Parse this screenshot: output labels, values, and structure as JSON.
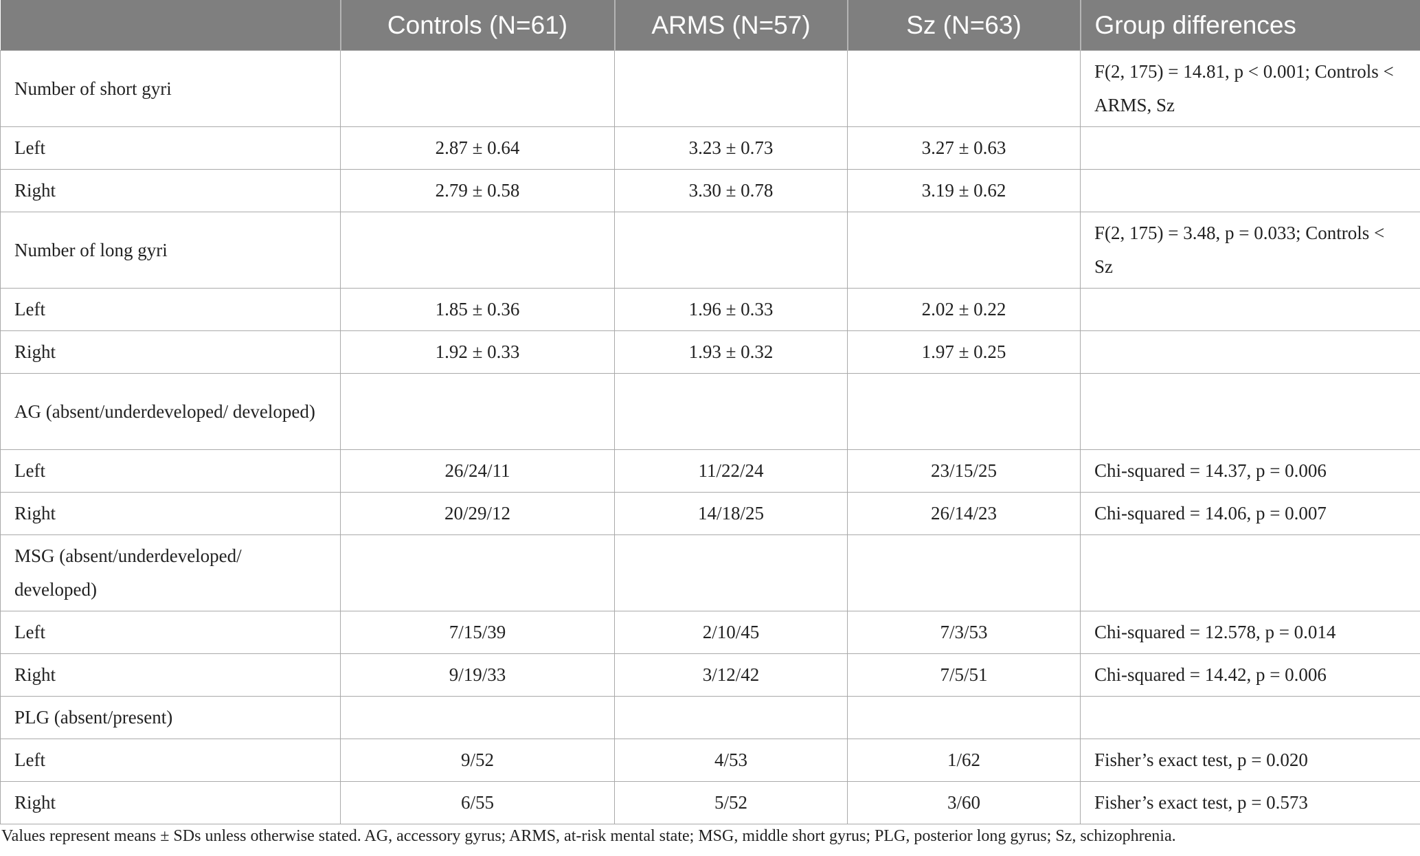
{
  "table": {
    "headers": [
      "",
      "Controls (N=61)",
      "ARMS (N=57)",
      "Sz (N=63)",
      "Group differences"
    ],
    "rows": [
      {
        "label": "Number of short gyri",
        "c1": "",
        "c2": "",
        "c3": "",
        "g": "F(2, 175) = 14.81, p < 0.001; Controls < ARMS, Sz",
        "tall": true
      },
      {
        "label": "Left",
        "c1": "2.87 ± 0.64",
        "c2": "3.23 ± 0.73",
        "c3": "3.27 ± 0.63",
        "g": "",
        "tall": false
      },
      {
        "label": "Right",
        "c1": "2.79 ± 0.58",
        "c2": "3.30 ± 0.78",
        "c3": "3.19 ± 0.62",
        "g": "",
        "tall": false
      },
      {
        "label": "Number of long gyri",
        "c1": "",
        "c2": "",
        "c3": "",
        "g": "F(2, 175) = 3.48, p = 0.033; Controls < Sz",
        "tall": true
      },
      {
        "label": "Left",
        "c1": "1.85 ± 0.36",
        "c2": "1.96 ± 0.33",
        "c3": "2.02 ± 0.22",
        "g": "",
        "tall": false
      },
      {
        "label": "Right",
        "c1": "1.92 ± 0.33",
        "c2": "1.93 ± 0.32",
        "c3": "1.97 ± 0.25",
        "g": "",
        "tall": false
      },
      {
        "label": "AG (absent/underdeveloped/ developed)",
        "c1": "",
        "c2": "",
        "c3": "",
        "g": "",
        "tall": true
      },
      {
        "label": "Left",
        "c1": "26/24/11",
        "c2": "11/22/24",
        "c3": "23/15/25",
        "g": "Chi-squared = 14.37, p = 0.006",
        "tall": false
      },
      {
        "label": "Right",
        "c1": "20/29/12",
        "c2": "14/18/25",
        "c3": "26/14/23",
        "g": "Chi-squared = 14.06, p = 0.007",
        "tall": false
      },
      {
        "label": "MSG (absent/underdeveloped/ developed)",
        "c1": "",
        "c2": "",
        "c3": "",
        "g": "",
        "tall": true
      },
      {
        "label": "Left",
        "c1": "7/15/39",
        "c2": "2/10/45",
        "c3": "7/3/53",
        "g": "Chi-squared = 12.578, p = 0.014",
        "tall": false
      },
      {
        "label": "Right",
        "c1": "9/19/33",
        "c2": "3/12/42",
        "c3": "7/5/51",
        "g": "Chi-squared = 14.42, p = 0.006",
        "tall": false
      },
      {
        "label": "PLG (absent/present)",
        "c1": "",
        "c2": "",
        "c3": "",
        "g": "",
        "tall": false
      },
      {
        "label": "Left",
        "c1": "9/52",
        "c2": "4/53",
        "c3": "1/62",
        "g": "Fisher’s exact test, p = 0.020",
        "tall": false
      },
      {
        "label": "Right",
        "c1": "6/55",
        "c2": "5/52",
        "c3": "3/60",
        "g": "Fisher’s exact test, p = 0.573",
        "tall": false
      }
    ]
  },
  "footnote": "Values represent means ± SDs unless otherwise stated. AG, accessory gyrus; ARMS, at-risk mental state; MSG, middle short gyrus; PLG, posterior long gyrus; Sz, schizophrenia."
}
